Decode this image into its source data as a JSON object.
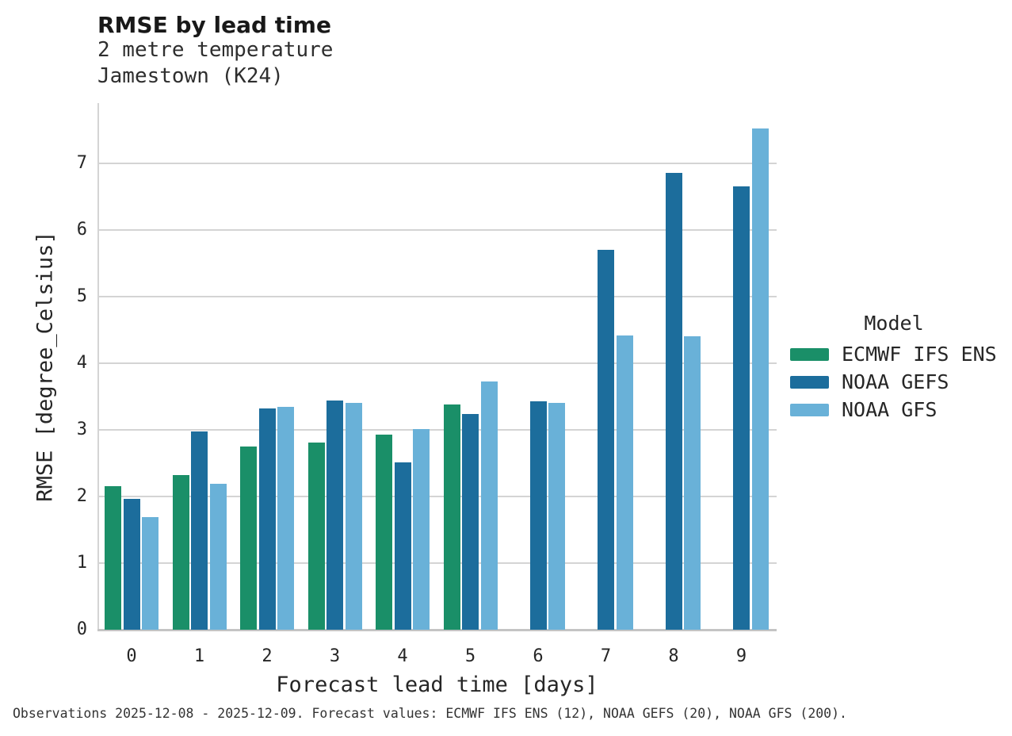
{
  "chart_data": {
    "type": "bar",
    "title": "RMSE by lead time",
    "subtitle_variable": "2 metre temperature",
    "subtitle_location": "Jamestown (K24)",
    "xlabel": "Forecast lead time [days]",
    "ylabel": "RMSE [degree_Celsius]",
    "legend_title": "Model",
    "legend_position": "right",
    "grid": "horizontal",
    "categories": [
      "0",
      "1",
      "2",
      "3",
      "4",
      "5",
      "6",
      "7",
      "8",
      "9"
    ],
    "yticks": [
      0,
      1,
      2,
      3,
      4,
      5,
      6,
      7
    ],
    "ylim": [
      0,
      7.9
    ],
    "series": [
      {
        "name": "ECMWF IFS ENS",
        "color": "#1a8f68",
        "values": [
          2.15,
          2.32,
          2.75,
          2.81,
          2.93,
          3.38,
          null,
          null,
          null,
          null
        ]
      },
      {
        "name": "NOAA GEFS",
        "color": "#1c6d9c",
        "values": [
          1.96,
          2.98,
          3.32,
          3.44,
          2.51,
          3.24,
          3.43,
          5.7,
          6.86,
          6.65
        ]
      },
      {
        "name": "NOAA GFS",
        "color": "#69b1d8",
        "values": [
          1.69,
          2.19,
          3.34,
          3.4,
          3.01,
          3.73,
          3.41,
          4.42,
          4.4,
          7.52
        ]
      }
    ],
    "caption": "Observations 2025-12-08 - 2025-12-09. Forecast values: ECMWF IFS ENS (12), NOAA GEFS (20), NOAA GFS (200)."
  },
  "colors": {
    "gridline": "#d4d4d4",
    "axis_line": "#c4c4c4",
    "text": "#262626"
  }
}
